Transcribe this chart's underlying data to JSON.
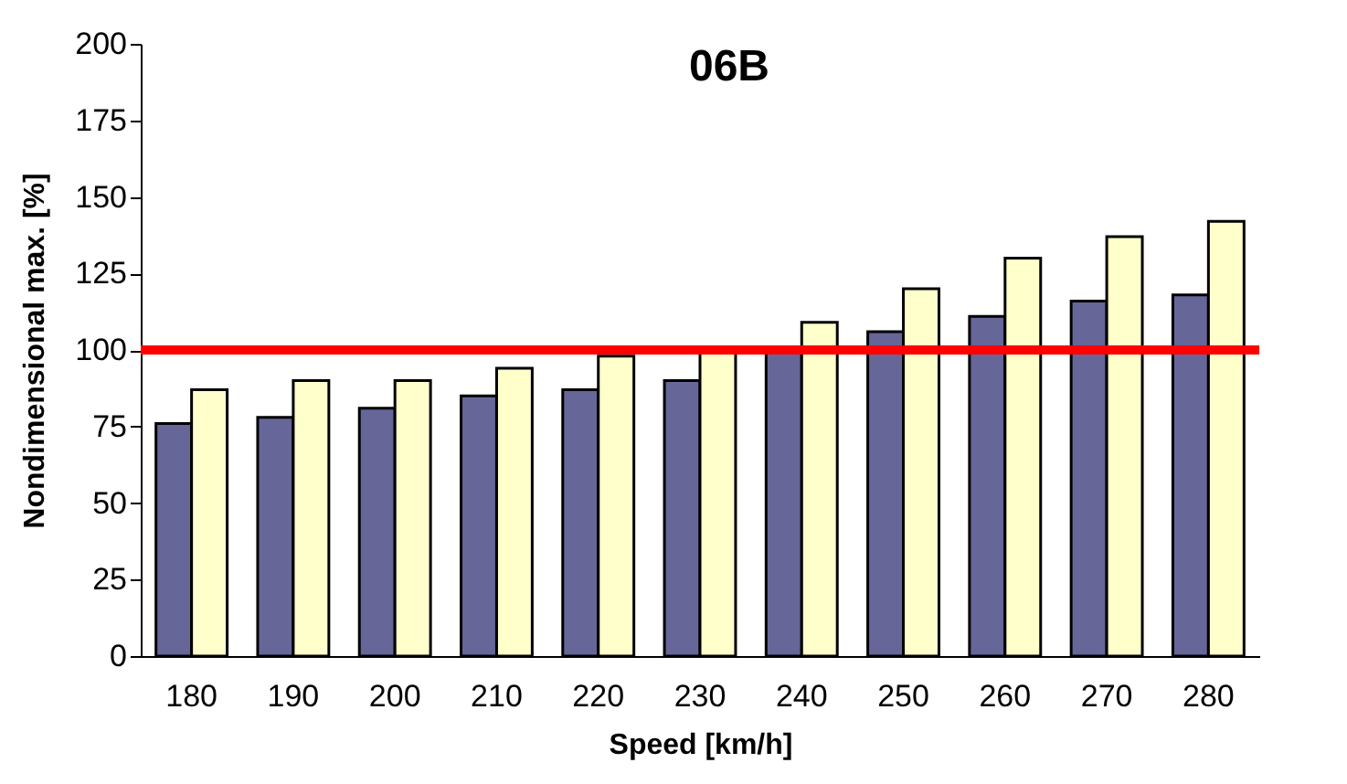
{
  "chart_data": {
    "type": "bar",
    "xlabel": "Speed   [km/h]",
    "ylabel": "Nondimensional max.   [%]",
    "categories": [
      "180",
      "190",
      "200",
      "210",
      "220",
      "230",
      "240",
      "250",
      "260",
      "270",
      "280"
    ],
    "series": [
      {
        "color": "#666699",
        "values": [
          76,
          78,
          81,
          85,
          87,
          90,
          100,
          106,
          111,
          116,
          118
        ]
      },
      {
        "color": "#ffffcc",
        "values": [
          87,
          90,
          90,
          94,
          98,
          100,
          109,
          120,
          130,
          137,
          142
        ]
      }
    ],
    "ylim": [
      0,
      200
    ],
    "yticks": [
      0,
      25,
      50,
      75,
      100,
      125,
      150,
      175,
      200
    ],
    "grid": false,
    "ref_lines": [
      {
        "axis": "y",
        "value": 100,
        "color": "#ff0000"
      }
    ],
    "annotations": [
      "06B"
    ]
  }
}
